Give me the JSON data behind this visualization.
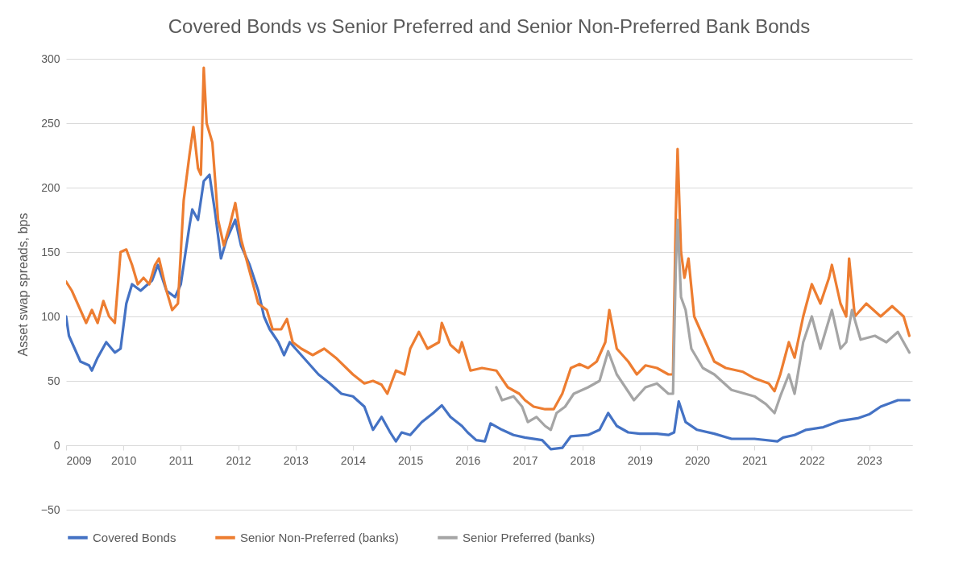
{
  "chart_data": {
    "type": "line",
    "title": "Covered Bonds vs Senior Preferred and Senior Non-Preferred Bank Bonds",
    "ylabel": "Asset swap spreads, bps",
    "xlim": [
      2009,
      2023.75
    ],
    "xticks": [
      2009,
      2010,
      2011,
      2012,
      2013,
      2014,
      2015,
      2016,
      2017,
      2018,
      2019,
      2020,
      2021,
      2022,
      2023
    ],
    "ylim": [
      -50,
      300
    ],
    "yticks": [
      -50,
      0,
      50,
      100,
      150,
      200,
      250,
      300
    ],
    "grid": "y",
    "legend": "bottom",
    "line_style": "solid",
    "marker": "none",
    "series": [
      {
        "name": "Covered Bonds",
        "color": "#4472c4",
        "x": [
          2009.0,
          2009.05,
          2009.15,
          2009.25,
          2009.4,
          2009.45,
          2009.55,
          2009.7,
          2009.85,
          2009.95,
          2010.05,
          2010.15,
          2010.3,
          2010.5,
          2010.6,
          2010.75,
          2010.9,
          2011.0,
          2011.05,
          2011.15,
          2011.2,
          2011.3,
          2011.4,
          2011.5,
          2011.6,
          2011.7,
          2011.8,
          2011.95,
          2012.05,
          2012.2,
          2012.35,
          2012.45,
          2012.55,
          2012.7,
          2012.8,
          2012.9,
          2013.0,
          2013.2,
          2013.4,
          2013.6,
          2013.8,
          2014.0,
          2014.2,
          2014.35,
          2014.5,
          2014.65,
          2014.75,
          2014.85,
          2015.0,
          2015.2,
          2015.4,
          2015.55,
          2015.7,
          2015.9,
          2016.0,
          2016.15,
          2016.3,
          2016.4,
          2016.6,
          2016.8,
          2017.0,
          2017.3,
          2017.45,
          2017.65,
          2017.8,
          2018.1,
          2018.3,
          2018.45,
          2018.6,
          2018.8,
          2019.0,
          2019.3,
          2019.5,
          2019.6,
          2019.68,
          2019.8,
          2020.0,
          2020.3,
          2020.6,
          2021.0,
          2021.4,
          2021.5,
          2021.7,
          2021.9,
          2022.2,
          2022.5,
          2022.8,
          2023.0,
          2023.2,
          2023.5,
          2023.7
        ],
        "values": [
          100,
          85,
          75,
          65,
          62,
          58,
          68,
          80,
          72,
          75,
          110,
          125,
          120,
          128,
          140,
          120,
          115,
          125,
          140,
          170,
          183,
          175,
          205,
          210,
          180,
          145,
          160,
          175,
          155,
          140,
          120,
          100,
          90,
          80,
          70,
          80,
          75,
          65,
          55,
          48,
          40,
          38,
          30,
          12,
          22,
          10,
          3,
          10,
          8,
          18,
          25,
          31,
          22,
          15,
          10,
          4,
          3,
          17,
          12,
          8,
          6,
          4,
          -3,
          -2,
          7,
          8,
          12,
          25,
          15,
          10,
          9,
          9,
          8,
          10,
          34,
          18,
          12,
          9,
          5,
          5,
          3,
          6,
          8,
          12,
          14,
          19,
          21,
          24,
          30,
          35,
          35
        ]
      },
      {
        "name": "Senior Non-Preferred (banks)",
        "color": "#ed7d31",
        "x": [
          2009.0,
          2009.1,
          2009.25,
          2009.35,
          2009.45,
          2009.55,
          2009.65,
          2009.75,
          2009.85,
          2009.95,
          2010.05,
          2010.15,
          2010.25,
          2010.35,
          2010.45,
          2010.55,
          2010.62,
          2010.75,
          2010.85,
          2010.95,
          2011.05,
          2011.15,
          2011.22,
          2011.3,
          2011.35,
          2011.4,
          2011.45,
          2011.55,
          2011.65,
          2011.75,
          2011.85,
          2011.95,
          2012.05,
          2012.2,
          2012.35,
          2012.5,
          2012.6,
          2012.75,
          2012.85,
          2012.95,
          2013.1,
          2013.3,
          2013.5,
          2013.7,
          2014.0,
          2014.2,
          2014.35,
          2014.5,
          2014.6,
          2014.75,
          2014.9,
          2015.0,
          2015.15,
          2015.3,
          2015.5,
          2015.55,
          2015.7,
          2015.85,
          2015.9,
          2016.05,
          2016.25,
          2016.5,
          2016.7,
          2016.9,
          2017.0,
          2017.15,
          2017.35,
          2017.5,
          2017.65,
          2017.8,
          2017.95,
          2018.1,
          2018.25,
          2018.4,
          2018.47,
          2018.6,
          2018.8,
          2018.95,
          2019.1,
          2019.3,
          2019.5,
          2019.58,
          2019.63,
          2019.66,
          2019.72,
          2019.78,
          2019.85,
          2019.95,
          2020.1,
          2020.3,
          2020.5,
          2020.8,
          2021.0,
          2021.25,
          2021.35,
          2021.45,
          2021.6,
          2021.7,
          2021.85,
          2022.0,
          2022.15,
          2022.3,
          2022.35,
          2022.5,
          2022.6,
          2022.65,
          2022.75,
          2022.95,
          2023.2,
          2023.4,
          2023.6,
          2023.7
        ],
        "values": [
          127,
          120,
          105,
          95,
          105,
          95,
          112,
          100,
          95,
          150,
          152,
          140,
          125,
          130,
          125,
          140,
          145,
          120,
          105,
          110,
          190,
          225,
          247,
          215,
          210,
          293,
          250,
          235,
          175,
          155,
          170,
          188,
          160,
          135,
          110,
          105,
          90,
          90,
          98,
          80,
          75,
          70,
          75,
          68,
          55,
          48,
          50,
          47,
          40,
          58,
          55,
          75,
          88,
          75,
          80,
          95,
          78,
          72,
          80,
          58,
          60,
          58,
          45,
          40,
          35,
          30,
          28,
          28,
          40,
          60,
          63,
          60,
          65,
          80,
          105,
          75,
          65,
          55,
          62,
          60,
          55,
          55,
          180,
          230,
          150,
          130,
          145,
          100,
          85,
          65,
          60,
          57,
          52,
          48,
          42,
          55,
          80,
          68,
          100,
          125,
          110,
          130,
          140,
          110,
          100,
          145,
          100,
          110,
          100,
          108,
          100,
          85
        ]
      },
      {
        "name": "Senior Preferred (banks)",
        "color": "#a5a5a5",
        "x": [
          2016.5,
          2016.6,
          2016.8,
          2016.95,
          2017.05,
          2017.2,
          2017.35,
          2017.45,
          2017.55,
          2017.7,
          2017.85,
          2018.1,
          2018.3,
          2018.45,
          2018.6,
          2018.75,
          2018.9,
          2019.1,
          2019.3,
          2019.5,
          2019.58,
          2019.63,
          2019.66,
          2019.72,
          2019.8,
          2019.9,
          2020.1,
          2020.3,
          2020.6,
          2021.0,
          2021.2,
          2021.35,
          2021.45,
          2021.6,
          2021.7,
          2021.85,
          2022.0,
          2022.15,
          2022.35,
          2022.5,
          2022.6,
          2022.7,
          2022.85,
          2023.1,
          2023.3,
          2023.5,
          2023.7
        ],
        "values": [
          45,
          35,
          38,
          30,
          18,
          22,
          15,
          12,
          25,
          30,
          40,
          45,
          50,
          73,
          55,
          45,
          35,
          45,
          48,
          40,
          40,
          140,
          175,
          115,
          105,
          75,
          60,
          55,
          43,
          38,
          32,
          25,
          38,
          55,
          40,
          80,
          100,
          75,
          105,
          75,
          80,
          105,
          82,
          85,
          80,
          88,
          72
        ]
      }
    ]
  }
}
